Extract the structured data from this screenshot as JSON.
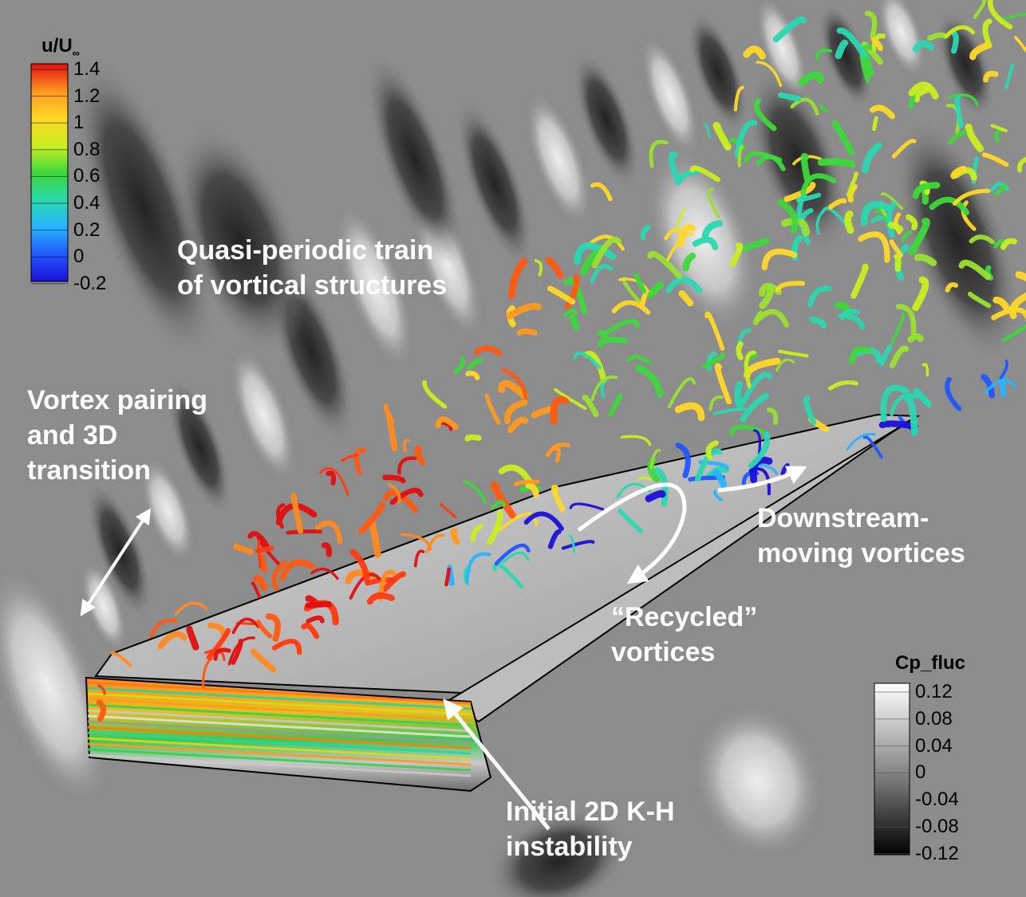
{
  "colorbar_velocity": {
    "title_main": "u/U",
    "title_sub": "∞",
    "ticks": [
      "1.4",
      "1.2",
      "1",
      "0.8",
      "0.6",
      "0.4",
      "0.2",
      "0",
      "-0.2"
    ],
    "colors": [
      "#e01010",
      "#ff5a10",
      "#ff9a20",
      "#ffd828",
      "#c8ee20",
      "#3ed83a",
      "#2ad8b0",
      "#28b4ff",
      "#2056ff",
      "#1a10d8"
    ]
  },
  "colorbar_cp": {
    "title": "Cp_fluc",
    "ticks": [
      "0.12",
      "0.08",
      "0.04",
      "0",
      "-0.04",
      "-0.08",
      "-0.12"
    ]
  },
  "annotations": {
    "quasi_periodic": [
      "Quasi-periodic train",
      "of vortical structures"
    ],
    "vortex_pairing": [
      "Vortex pairing",
      "and 3D",
      "transition"
    ],
    "downstream": [
      "Downstream-",
      "moving vortices"
    ],
    "recycled": [
      "“Recycled”",
      "vortices"
    ],
    "kh": [
      "Initial 2D K-H",
      "instability"
    ]
  }
}
